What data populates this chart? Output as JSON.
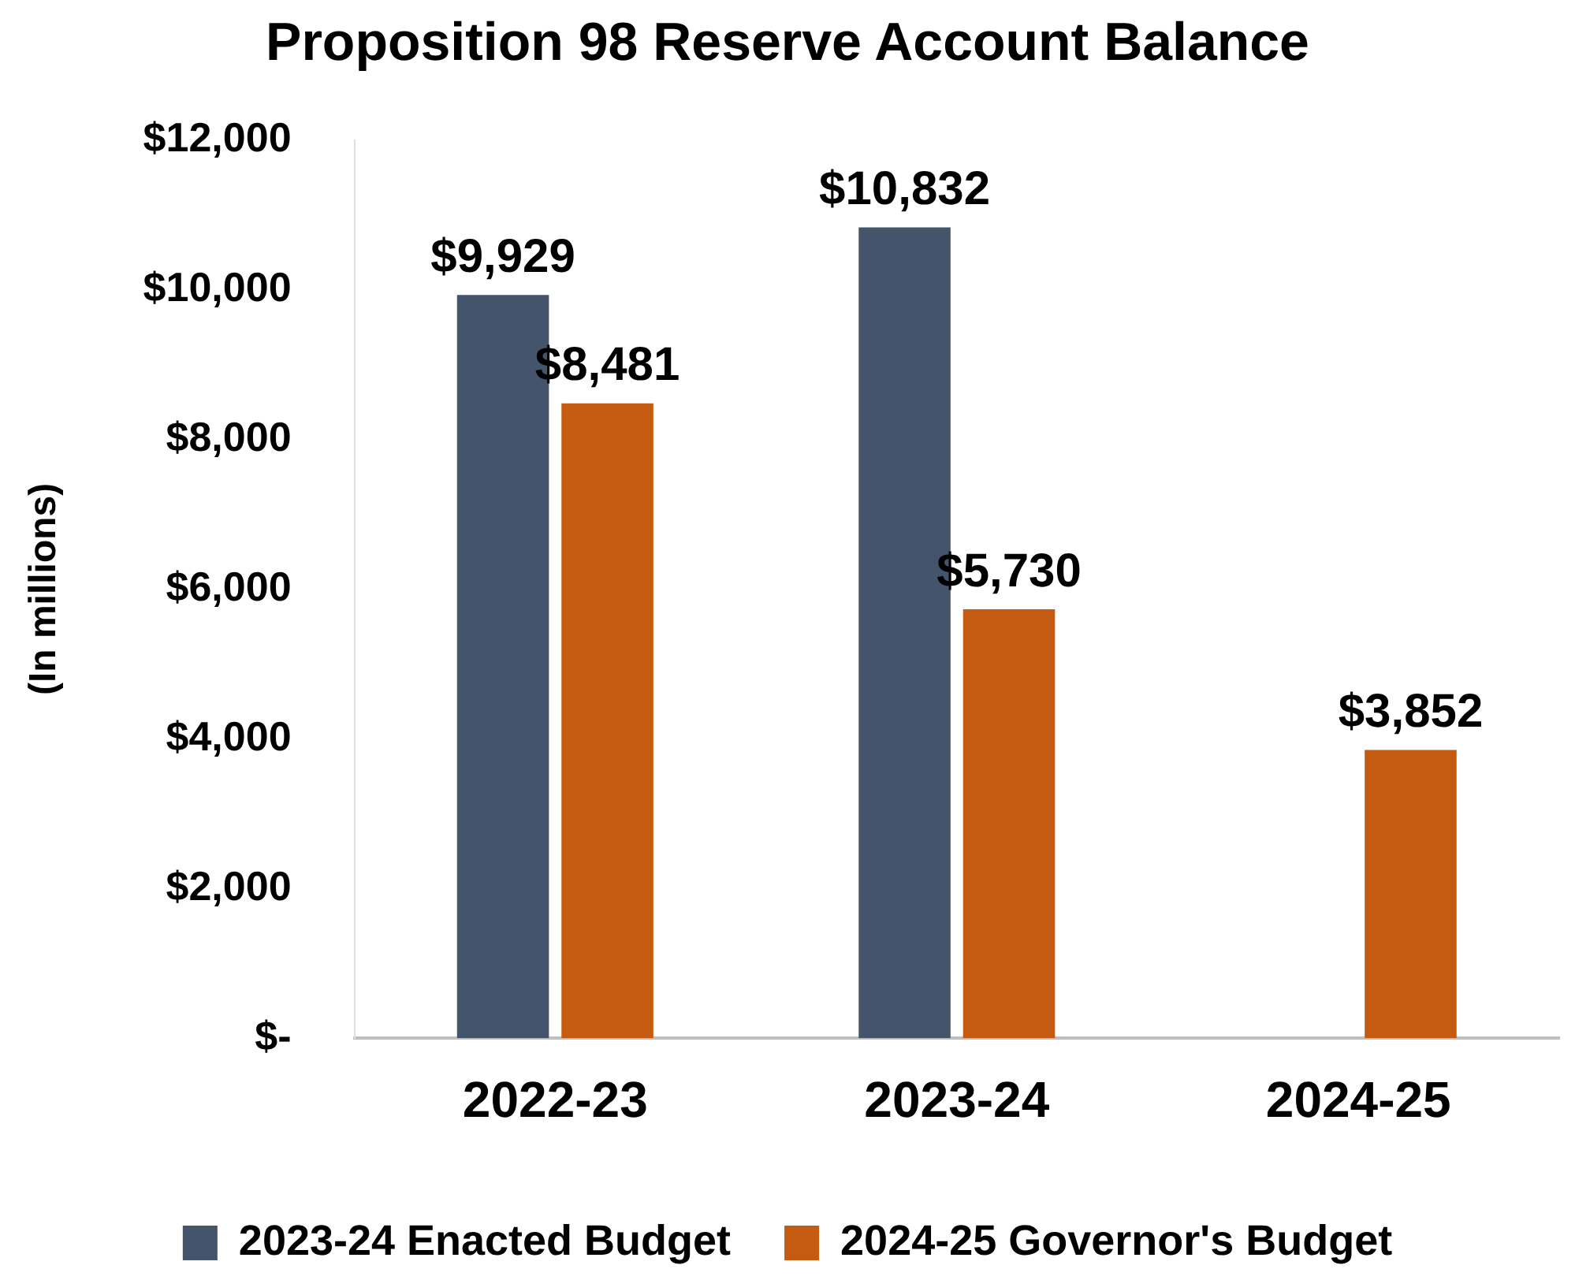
{
  "chart_data": {
    "type": "bar",
    "title": "Proposition 98 Reserve Account Balance",
    "ylabel": "(In millions)",
    "categories": [
      "2022-23",
      "2023-24",
      "2024-25"
    ],
    "series": [
      {
        "name": "2023-24 Enacted Budget",
        "color": "#44546a",
        "values": [
          9929,
          10832,
          null
        ],
        "value_labels": [
          "$9,929",
          "$10,832",
          null
        ]
      },
      {
        "name": "2024-25 Governor's Budget",
        "color": "#c55a11",
        "values": [
          8481,
          5730,
          3852
        ],
        "value_labels": [
          "$8,481",
          "$5,730",
          "$3,852"
        ]
      }
    ],
    "ylim": [
      0,
      12000
    ],
    "yticks": [
      {
        "value": 0,
        "label": "$-"
      },
      {
        "value": 2000,
        "label": "$2,000"
      },
      {
        "value": 4000,
        "label": "$4,000"
      },
      {
        "value": 6000,
        "label": "$6,000"
      },
      {
        "value": 8000,
        "label": "$8,000"
      },
      {
        "value": 10000,
        "label": "$10,000"
      },
      {
        "value": 12000,
        "label": "$12,000"
      }
    ],
    "grid": false,
    "legend": "bottom"
  }
}
